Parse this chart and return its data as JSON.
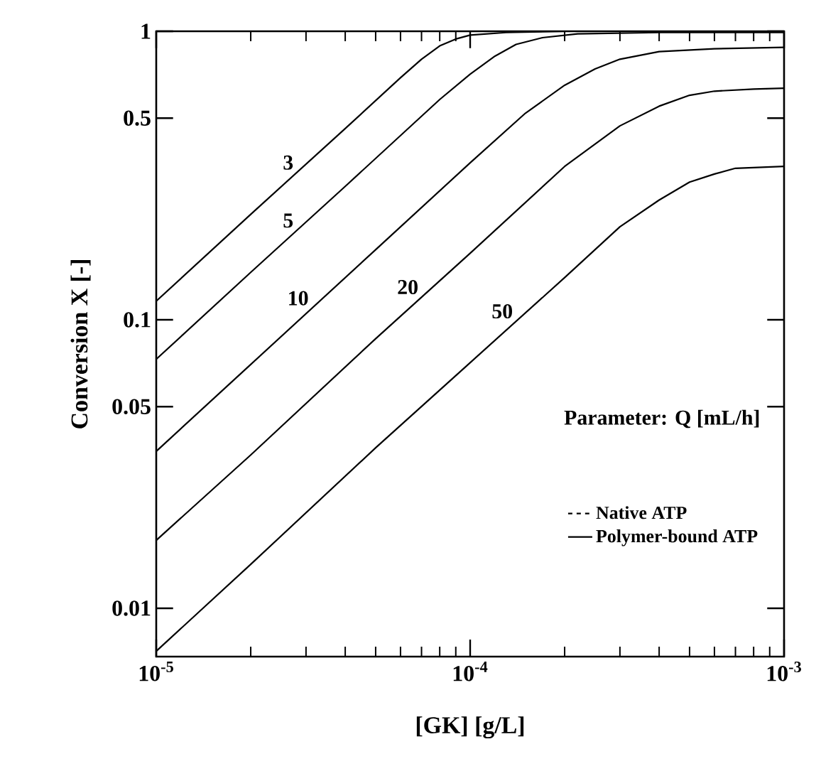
{
  "chart_data": {
    "type": "line",
    "xlabel": "[GK]  [g/L]",
    "ylabel": "Conversion  X [-]",
    "log": "xy",
    "xlim": [
      1e-05,
      0.001
    ],
    "ylim": [
      0.0068,
      1
    ],
    "xticks": [
      {
        "value": 1e-05,
        "label": "10$^{-5}$"
      },
      {
        "value": 0.0001,
        "label": "10$^{-4}$"
      },
      {
        "value": 0.001,
        "label": "10$^{-3}$"
      }
    ],
    "yticks": [
      0.01,
      0.05,
      0.1,
      0.5,
      1
    ],
    "grid": false,
    "legend": "bottom right",
    "marker": "none",
    "series": [
      {
        "name": "Native ATP",
        "color": "#000000",
        "line_style": "dashed"
      },
      {
        "name": "Polymer-bound ATP",
        "color": "#000000",
        "line_style": "solid"
      },
      {
        "name": "3",
        "color": "#000000",
        "line_style": "solid",
        "x": [
          1e-05,
          2e-05,
          4e-05,
          6e-05,
          7e-05,
          8e-05,
          9e-05,
          0.0001,
          0.00013,
          0.0002,
          0.001
        ],
        "values": [
          0.116,
          0.232,
          0.46,
          0.69,
          0.8,
          0.89,
          0.94,
          0.97,
          0.99,
          1.0,
          1.0
        ]
      },
      {
        "name": "5",
        "color": "#000000",
        "line_style": "solid",
        "x": [
          1e-05,
          2e-05,
          4e-05,
          8e-05,
          0.0001,
          0.00012,
          0.00014,
          0.00017,
          0.00022,
          0.0004,
          0.001
        ],
        "values": [
          0.073,
          0.146,
          0.29,
          0.58,
          0.71,
          0.82,
          0.9,
          0.95,
          0.98,
          0.99,
          0.99
        ]
      },
      {
        "name": "10",
        "color": "#000000",
        "line_style": "solid",
        "x": [
          1e-05,
          2e-05,
          5e-05,
          0.0001,
          0.00015,
          0.0002,
          0.00025,
          0.0003,
          0.0004,
          0.0006,
          0.001
        ],
        "values": [
          0.035,
          0.07,
          0.175,
          0.35,
          0.52,
          0.65,
          0.74,
          0.8,
          0.85,
          0.87,
          0.88
        ]
      },
      {
        "name": "20",
        "color": "#000000",
        "line_style": "solid",
        "x": [
          1e-05,
          2e-05,
          5e-05,
          0.0001,
          0.0002,
          0.0003,
          0.0004,
          0.0005,
          0.0006,
          0.0008,
          0.001
        ],
        "values": [
          0.0172,
          0.034,
          0.086,
          0.17,
          0.34,
          0.47,
          0.55,
          0.6,
          0.62,
          0.63,
          0.635
        ]
      },
      {
        "name": "50",
        "color": "#000000",
        "line_style": "solid",
        "x": [
          1e-05,
          2e-05,
          5e-05,
          0.0001,
          0.0002,
          0.0003,
          0.0004,
          0.0005,
          0.0006,
          0.0007,
          0.001
        ],
        "values": [
          0.0071,
          0.0142,
          0.036,
          0.071,
          0.14,
          0.21,
          0.26,
          0.3,
          0.32,
          0.335,
          0.34
        ]
      }
    ],
    "annotations": [
      "Parameter: Q [mL/h]"
    ]
  }
}
